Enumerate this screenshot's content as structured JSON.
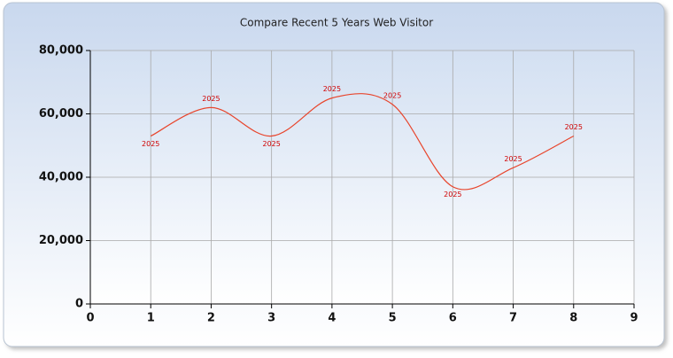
{
  "chart_data": {
    "type": "line",
    "title": "Compare Recent 5 Years Web Visitor",
    "x": [
      1,
      2,
      3,
      4,
      5,
      6,
      7,
      8
    ],
    "series": [
      {
        "name": "2025",
        "color": "#e8452c",
        "values": [
          53000,
          62000,
          53000,
          65000,
          63000,
          37000,
          43000,
          53000
        ]
      }
    ],
    "xlim": [
      0,
      9
    ],
    "xticks": [
      0,
      1,
      2,
      3,
      4,
      5,
      6,
      7,
      8,
      9
    ],
    "ylim": [
      0,
      80000
    ],
    "yticks": [
      0,
      {
        "value": 20000,
        "label": "20,000"
      },
      {
        "value": 40000,
        "label": "40,000"
      },
      {
        "value": 60000,
        "label": "60,000"
      },
      {
        "value": 80000,
        "label": "80,000"
      }
    ],
    "grid": true,
    "smooth": true
  }
}
